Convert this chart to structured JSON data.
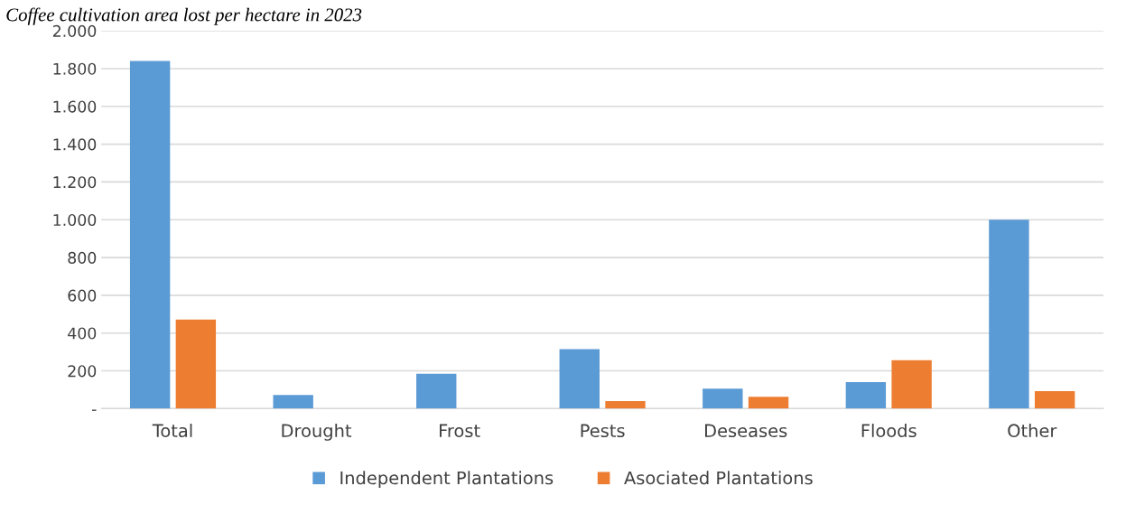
{
  "chart_data": {
    "type": "bar",
    "title": "Coffee cultivation area lost per hectare in 2023",
    "categories": [
      "Total",
      "Drought",
      "Frost",
      "Pests",
      "Deseases",
      "Floods",
      "Other"
    ],
    "series": [
      {
        "name": "Independent Plantations",
        "color": "#5b9bd5",
        "values": [
          1840,
          72,
          185,
          315,
          106,
          140,
          1000
        ]
      },
      {
        "name": "Asociated Plantations",
        "color": "#ed7d31",
        "values": [
          472,
          null,
          null,
          40,
          63,
          256,
          92
        ]
      }
    ],
    "ylim": [
      0,
      2000
    ],
    "yticks": [
      {
        "value": 0,
        "label": "-"
      },
      {
        "value": 200,
        "label": "200"
      },
      {
        "value": 400,
        "label": "400"
      },
      {
        "value": 600,
        "label": "600"
      },
      {
        "value": 800,
        "label": "800"
      },
      {
        "value": 1000,
        "label": "1.000"
      },
      {
        "value": 1200,
        "label": "1.200"
      },
      {
        "value": 1400,
        "label": "1.400"
      },
      {
        "value": 1600,
        "label": "1.600"
      },
      {
        "value": 1800,
        "label": "1.800"
      },
      {
        "value": 2000,
        "label": "2.000"
      }
    ],
    "grid": "y",
    "legend": "bottom"
  }
}
